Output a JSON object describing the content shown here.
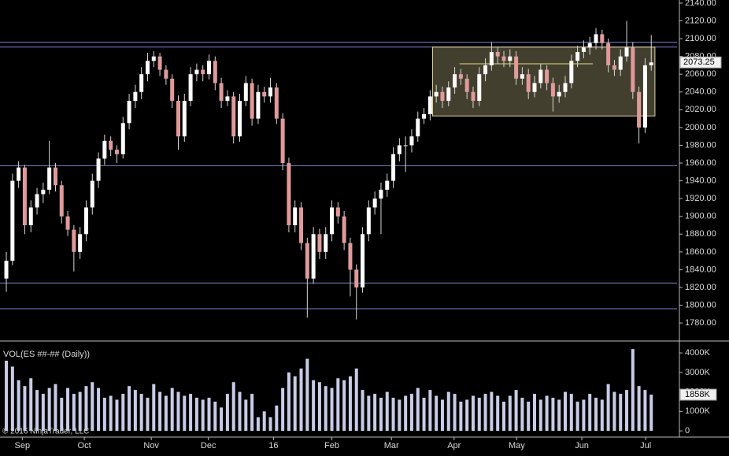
{
  "chart_data": {
    "type": "candlestick",
    "xlim": [
      -1.03,
      109.2
    ],
    "xticks": [
      {
        "value": 2.6,
        "label": "Sep"
      },
      {
        "value": 12.7,
        "label": "Oct"
      },
      {
        "value": 23.6,
        "label": "Nov"
      },
      {
        "value": 32.9,
        "label": "Dec"
      },
      {
        "value": 43.5,
        "label": "16"
      },
      {
        "value": 53,
        "label": "Feb"
      },
      {
        "value": 62.7,
        "label": "Mar"
      },
      {
        "value": 72.9,
        "label": "Apr"
      },
      {
        "value": 83.1,
        "label": "May"
      },
      {
        "value": 93.7,
        "label": "Jun"
      },
      {
        "value": 104.1,
        "label": "Jul"
      }
    ],
    "ylim": [
      1760.6,
      2143.5
    ],
    "yticks": [
      {
        "value": 1780,
        "label": "1780.00"
      },
      {
        "value": 1800,
        "label": "1800.00"
      },
      {
        "value": 1820,
        "label": "1820.00"
      },
      {
        "value": 1840,
        "label": "1840.00"
      },
      {
        "value": 1860,
        "label": "1860.00"
      },
      {
        "value": 1880,
        "label": "1880.00"
      },
      {
        "value": 1900,
        "label": "1900.00"
      },
      {
        "value": 1920,
        "label": "1920.00"
      },
      {
        "value": 1940,
        "label": "1940.00"
      },
      {
        "value": 1960,
        "label": "1960.00"
      },
      {
        "value": 1980,
        "label": "1980.00"
      },
      {
        "value": 2000,
        "label": "2000.00"
      },
      {
        "value": 2020,
        "label": "2020.00"
      },
      {
        "value": 2040,
        "label": "2040.00"
      },
      {
        "value": 2060,
        "label": "2060.00"
      },
      {
        "value": 2080,
        "label": "2080.00"
      },
      {
        "value": 2100,
        "label": "2100.00"
      },
      {
        "value": 2120,
        "label": "2120.00"
      },
      {
        "value": 2140,
        "label": "2140.00"
      }
    ],
    "up_color": "#ffffff",
    "down_color": "#e09a9a",
    "wick_color": "#d8d8d8",
    "ohlc": [
      [
        1830,
        1860,
        1815,
        1850
      ],
      [
        1850,
        1948,
        1845,
        1940
      ],
      [
        1940,
        1962,
        1932,
        1955
      ],
      [
        1955,
        1958,
        1880,
        1890
      ],
      [
        1890,
        1918,
        1882,
        1910
      ],
      [
        1910,
        1932,
        1902,
        1925
      ],
      [
        1925,
        1938,
        1915,
        1930
      ],
      [
        1930,
        1985,
        1925,
        1955
      ],
      [
        1955,
        1960,
        1928,
        1935
      ],
      [
        1935,
        1940,
        1892,
        1900
      ],
      [
        1900,
        1906,
        1878,
        1885
      ],
      [
        1885,
        1890,
        1838,
        1860
      ],
      [
        1860,
        1888,
        1852,
        1880
      ],
      [
        1880,
        1918,
        1872,
        1910
      ],
      [
        1910,
        1948,
        1902,
        1940
      ],
      [
        1940,
        1972,
        1932,
        1965
      ],
      [
        1965,
        1992,
        1958,
        1985
      ],
      [
        1985,
        1990,
        1968,
        1975
      ],
      [
        1975,
        1980,
        1960,
        1970
      ],
      [
        1970,
        2012,
        1965,
        2005
      ],
      [
        2005,
        2038,
        1998,
        2030
      ],
      [
        2030,
        2048,
        2022,
        2040
      ],
      [
        2040,
        2068,
        2032,
        2060
      ],
      [
        2060,
        2084,
        2052,
        2075
      ],
      [
        2075,
        2086,
        2068,
        2080
      ],
      [
        2080,
        2084,
        2058,
        2065
      ],
      [
        2065,
        2070,
        2048,
        2055
      ],
      [
        2055,
        2060,
        2022,
        2030
      ],
      [
        2030,
        2036,
        1975,
        1990
      ],
      [
        1990,
        2038,
        1984,
        2030
      ],
      [
        2030,
        2068,
        2024,
        2060
      ],
      [
        2060,
        2072,
        2052,
        2065
      ],
      [
        2065,
        2070,
        2052,
        2060
      ],
      [
        2060,
        2082,
        2054,
        2075
      ],
      [
        2075,
        2080,
        2042,
        2050
      ],
      [
        2050,
        2056,
        2022,
        2030
      ],
      [
        2030,
        2042,
        2024,
        2035
      ],
      [
        2035,
        2040,
        1982,
        1990
      ],
      [
        1990,
        2038,
        1984,
        2030
      ],
      [
        2030,
        2058,
        2024,
        2050
      ],
      [
        2050,
        2055,
        2002,
        2010
      ],
      [
        2010,
        2048,
        2004,
        2040
      ],
      [
        2040,
        2046,
        2028,
        2035
      ],
      [
        2035,
        2056,
        2028,
        2045
      ],
      [
        2045,
        2050,
        2004,
        2010
      ],
      [
        2010,
        2016,
        1952,
        1960
      ],
      [
        1960,
        1966,
        1882,
        1890
      ],
      [
        1890,
        1918,
        1882,
        1910
      ],
      [
        1910,
        1916,
        1862,
        1870
      ],
      [
        1870,
        1876,
        1786,
        1830
      ],
      [
        1830,
        1888,
        1824,
        1880
      ],
      [
        1880,
        1886,
        1852,
        1860
      ],
      [
        1860,
        1888,
        1852,
        1880
      ],
      [
        1880,
        1918,
        1872,
        1910
      ],
      [
        1910,
        1916,
        1892,
        1900
      ],
      [
        1900,
        1906,
        1862,
        1870
      ],
      [
        1870,
        1876,
        1810,
        1840
      ],
      [
        1840,
        1846,
        1784,
        1820
      ],
      [
        1820,
        1888,
        1814,
        1880
      ],
      [
        1880,
        1918,
        1872,
        1910
      ],
      [
        1910,
        1928,
        1902,
        1920
      ],
      [
        1920,
        1938,
        1880,
        1930
      ],
      [
        1930,
        1948,
        1922,
        1940
      ],
      [
        1940,
        1978,
        1932,
        1970
      ],
      [
        1970,
        1988,
        1962,
        1980
      ],
      [
        1980,
        1990,
        1950,
        1980
      ],
      [
        1980,
        1998,
        1972,
        1990
      ],
      [
        1990,
        2018,
        1984,
        2010
      ],
      [
        2010,
        2022,
        2004,
        2015
      ],
      [
        2015,
        2042,
        2008,
        2035
      ],
      [
        2035,
        2048,
        2028,
        2040
      ],
      [
        2040,
        2046,
        2022,
        2030
      ],
      [
        2030,
        2052,
        2024,
        2045
      ],
      [
        2045,
        2068,
        2038,
        2060
      ],
      [
        2060,
        2066,
        2048,
        2055
      ],
      [
        2055,
        2060,
        2032,
        2040
      ],
      [
        2040,
        2046,
        2022,
        2030
      ],
      [
        2030,
        2068,
        2024,
        2060
      ],
      [
        2060,
        2078,
        2052,
        2070
      ],
      [
        2070,
        2096,
        2064,
        2085
      ],
      [
        2085,
        2090,
        2072,
        2080
      ],
      [
        2080,
        2086,
        2068,
        2075
      ],
      [
        2075,
        2088,
        2068,
        2080
      ],
      [
        2080,
        2086,
        2048,
        2055
      ],
      [
        2055,
        2068,
        2048,
        2060
      ],
      [
        2060,
        2066,
        2032,
        2040
      ],
      [
        2040,
        2058,
        2034,
        2050
      ],
      [
        2050,
        2072,
        2044,
        2065
      ],
      [
        2065,
        2070,
        2042,
        2050
      ],
      [
        2050,
        2056,
        2018,
        2035
      ],
      [
        2035,
        2048,
        2028,
        2040
      ],
      [
        2040,
        2058,
        2034,
        2050
      ],
      [
        2050,
        2082,
        2044,
        2075
      ],
      [
        2075,
        2092,
        2068,
        2085
      ],
      [
        2085,
        2098,
        2078,
        2090
      ],
      [
        2090,
        2102,
        2082,
        2095
      ],
      [
        2095,
        2112,
        2088,
        2105
      ],
      [
        2105,
        2110,
        2088,
        2095
      ],
      [
        2095,
        2100,
        2062,
        2070
      ],
      [
        2070,
        2076,
        2058,
        2065
      ],
      [
        2065,
        2088,
        2058,
        2080
      ],
      [
        2080,
        2120,
        2074,
        2090
      ],
      [
        2090,
        2096,
        2032,
        2040
      ],
      [
        2040,
        2046,
        1982,
        2000
      ],
      [
        2000,
        2078,
        1994,
        2070
      ],
      [
        2070,
        2104,
        2064,
        2073.25
      ]
    ],
    "hlines": [
      2096,
      2090.5,
      1957,
      1825,
      1796
    ],
    "hline_color": "#7a82d0",
    "box": {
      "x": [
        69.4,
        105.6
      ],
      "y": [
        2013,
        2090.5
      ]
    },
    "level_line": {
      "x": [
        73.8,
        95.5
      ],
      "y": 2071.7
    },
    "last_price": 2073.25,
    "volume_title": "VOL(ES ##-## (Daily))",
    "volume_color": "#c8cce6",
    "vlim": [
      -320,
      4530
    ],
    "vticks": [
      0,
      {
        "value": 1000,
        "label": "1000K"
      },
      {
        "value": 2000,
        "label": "2000K"
      },
      {
        "value": 3000,
        "label": "3000K"
      },
      {
        "value": 4000,
        "label": "4000K"
      }
    ],
    "volume": [
      3600,
      3300,
      2600,
      2300,
      2700,
      2100,
      1900,
      2200,
      2400,
      1700,
      2200,
      1900,
      2000,
      2300,
      2500,
      2200,
      1700,
      1800,
      1600,
      1900,
      2300,
      2100,
      1900,
      1700,
      2400,
      2000,
      1800,
      2200,
      2000,
      1800,
      1900,
      1700,
      1600,
      1700,
      1500,
      1200,
      1900,
      2500,
      2000,
      1600,
      1900,
      700,
      1000,
      700,
      1300,
      2200,
      3000,
      2800,
      3200,
      3700,
      2600,
      2500,
      2300,
      2200,
      2700,
      2600,
      2800,
      3200,
      2100,
      1800,
      1900,
      1700,
      2000,
      1700,
      1600,
      1800,
      1900,
      2200,
      1700,
      2100,
      1800,
      1600,
      2000,
      1900,
      1500,
      1600,
      1800,
      1700,
      1900,
      2000,
      1800,
      1500,
      1800,
      2100,
      1700,
      1500,
      1900,
      1600,
      1800,
      1700,
      1600,
      2000,
      1900,
      1500,
      1600,
      1900,
      1700,
      1600,
      2400,
      2000,
      1900,
      2100,
      4200,
      2300,
      2100,
      1858
    ],
    "last_volume": {
      "value": 1858,
      "label": "1858K"
    },
    "copyright": "© 2016 NinjaTrader, LLC"
  }
}
